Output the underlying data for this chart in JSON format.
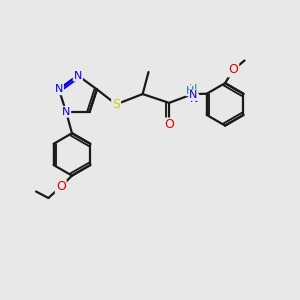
{
  "bg_color": "#e8e8e8",
  "bond_color": "#1a1a1a",
  "N_color": "#0000ee",
  "S_color": "#cccc00",
  "O_color": "#dd0000",
  "H_color": "#008080",
  "line_width": 1.6,
  "figsize": [
    3.0,
    3.0
  ],
  "dpi": 100,
  "xlim": [
    0,
    10
  ],
  "ylim": [
    0,
    10
  ]
}
